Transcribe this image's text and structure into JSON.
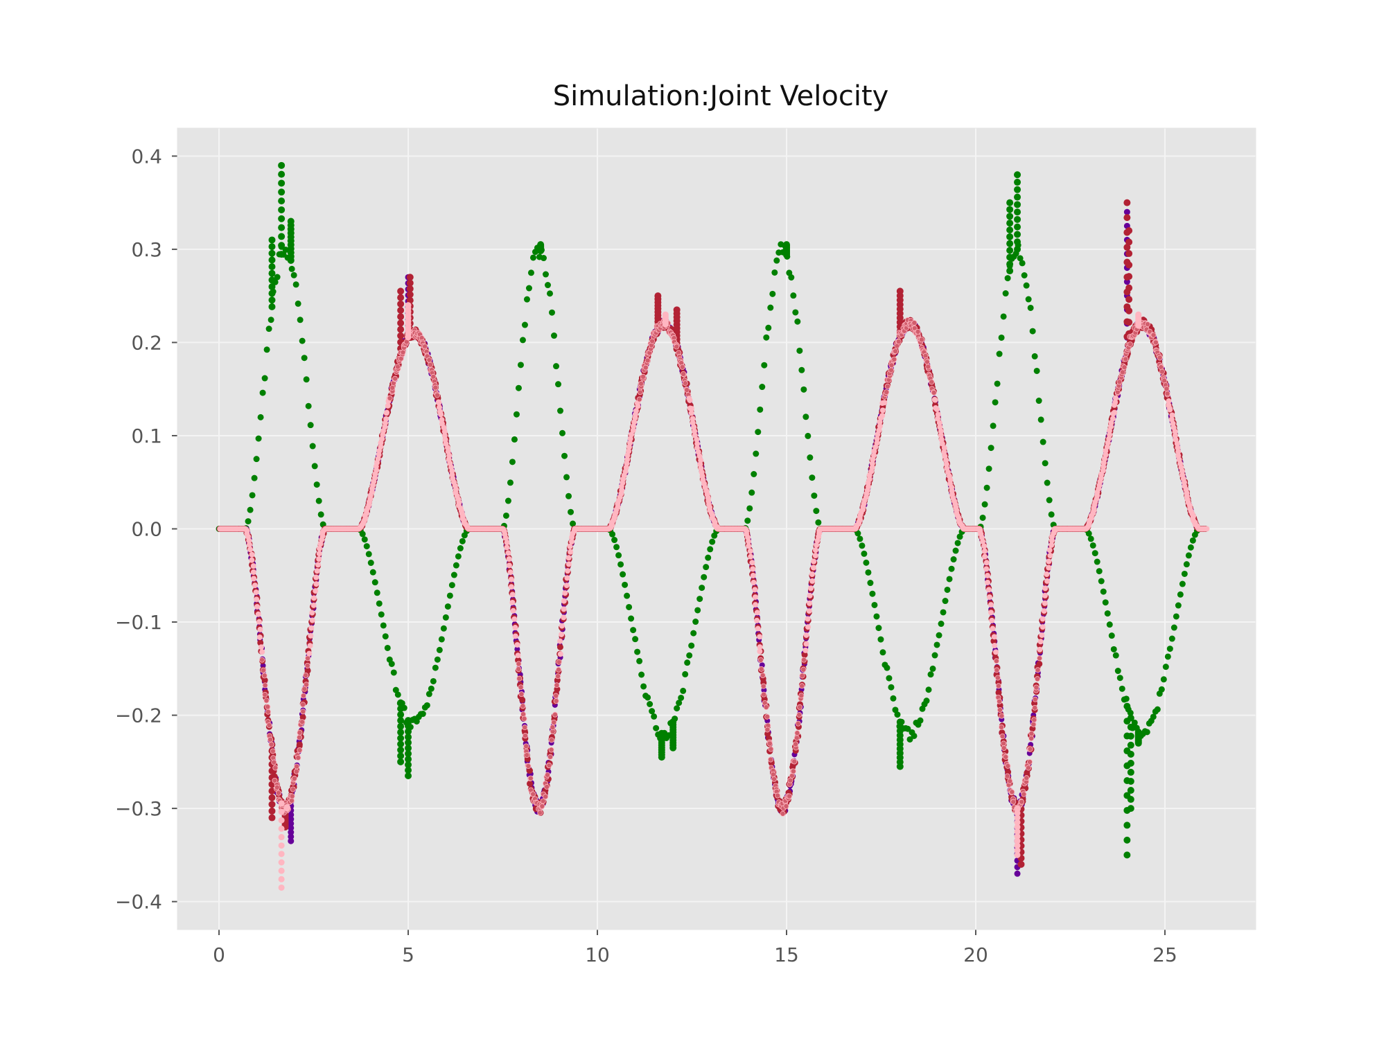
{
  "chart_data": {
    "type": "scatter",
    "title": "Simulation:Joint Velocity",
    "xlabel": "",
    "ylabel": "",
    "xlim": [
      -1.1,
      27.4
    ],
    "ylim": [
      -0.43,
      0.43
    ],
    "x_ticks": [
      0,
      5,
      10,
      15,
      20,
      25
    ],
    "x_tick_labels": [
      "0",
      "5",
      "10",
      "15",
      "20",
      "25"
    ],
    "y_ticks": [
      0.4,
      0.3,
      0.2,
      0.1,
      0.0,
      -0.1,
      -0.2,
      -0.3,
      -0.4
    ],
    "y_tick_labels": [
      "0.4",
      "0.3",
      "0.2",
      "0.1",
      "0.0",
      "−0.1",
      "−0.2",
      "−0.3",
      "−0.4"
    ],
    "grid": true,
    "style": "ggplot",
    "background_color": "#e5e5e5",
    "segments": [
      {
        "start": 0.7,
        "end": 2.8,
        "peak": 0.3
      },
      {
        "start": 3.7,
        "end": 6.6,
        "peak": 0.21
      },
      {
        "start": 7.5,
        "end": 9.4,
        "peak": 0.3
      },
      {
        "start": 10.3,
        "end": 13.2,
        "peak": 0.22
      },
      {
        "start": 13.9,
        "end": 15.9,
        "peak": 0.3
      },
      {
        "start": 16.8,
        "end": 19.7,
        "peak": 0.22
      },
      {
        "start": 20.1,
        "end": 22.1,
        "peak": 0.3
      },
      {
        "start": 22.9,
        "end": 25.9,
        "peak": 0.22
      }
    ],
    "x_end": 26.1,
    "series": [
      {
        "color": "#008000",
        "sign": [
          1,
          -1,
          1,
          -1,
          1,
          -1,
          1,
          -1
        ],
        "spikes": [
          {
            "x": 1.65,
            "y": 0.39
          },
          {
            "x": 1.4,
            "y": 0.31
          },
          {
            "x": 1.9,
            "y": 0.33
          },
          {
            "x": 5.0,
            "y": -0.265
          },
          {
            "x": 4.8,
            "y": -0.25
          },
          {
            "x": 8.5,
            "y": 0.305
          },
          {
            "x": 11.7,
            "y": -0.245
          },
          {
            "x": 12.0,
            "y": -0.235
          },
          {
            "x": 15.0,
            "y": 0.305
          },
          {
            "x": 18.0,
            "y": -0.255
          },
          {
            "x": 21.1,
            "y": 0.38
          },
          {
            "x": 20.9,
            "y": 0.35
          },
          {
            "x": 24.0,
            "y": -0.35
          },
          {
            "x": 24.1,
            "y": -0.3
          },
          {
            "x": 24.3,
            "y": -0.23
          }
        ]
      },
      {
        "color": "#660099",
        "sign": [
          -1,
          1,
          -1,
          1,
          -1,
          1,
          -1,
          1
        ],
        "spikes": [
          {
            "x": 1.9,
            "y": -0.335
          },
          {
            "x": 5.0,
            "y": 0.27
          },
          {
            "x": 21.1,
            "y": -0.37
          },
          {
            "x": 24.0,
            "y": 0.34
          }
        ]
      },
      {
        "color": "#b22234",
        "sign": [
          -1,
          1,
          -1,
          1,
          -1,
          1,
          -1,
          1
        ],
        "spikes": [
          {
            "x": 1.4,
            "y": -0.31
          },
          {
            "x": 1.75,
            "y": -0.32
          },
          {
            "x": 4.8,
            "y": 0.255
          },
          {
            "x": 5.05,
            "y": 0.27
          },
          {
            "x": 11.6,
            "y": 0.25
          },
          {
            "x": 12.1,
            "y": 0.235
          },
          {
            "x": 18.0,
            "y": 0.255
          },
          {
            "x": 21.2,
            "y": -0.36
          },
          {
            "x": 24.0,
            "y": 0.35
          },
          {
            "x": 24.05,
            "y": 0.32
          }
        ]
      },
      {
        "color": "#ffb6c1",
        "sign": [
          -1,
          1,
          -1,
          1,
          -1,
          1,
          -1,
          1
        ],
        "spikes": [
          {
            "x": 1.65,
            "y": -0.385
          },
          {
            "x": 1.8,
            "y": -0.3
          },
          {
            "x": 5.0,
            "y": 0.24
          },
          {
            "x": 11.8,
            "y": 0.23
          },
          {
            "x": 21.1,
            "y": -0.35
          },
          {
            "x": 24.3,
            "y": 0.23
          }
        ]
      }
    ]
  }
}
